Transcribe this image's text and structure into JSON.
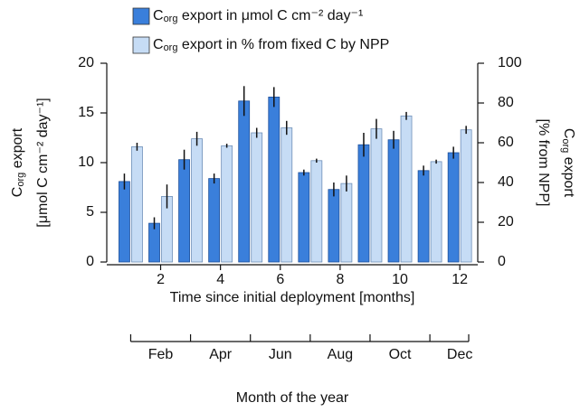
{
  "chart_data": {
    "type": "bar",
    "ylabel": [
      "Corg export",
      "[μmol C cm⁻² day⁻¹]"
    ],
    "y2label": [
      "Corg export",
      "[% from NPP]"
    ],
    "xlabel": "Time since initial deployment [months]",
    "x2label": "Month of the year",
    "x": [
      1,
      2,
      3,
      4,
      5,
      6,
      7,
      8,
      9,
      10,
      11,
      12
    ],
    "xlim": [
      0.2,
      12.6
    ],
    "xticks": [
      2,
      4,
      6,
      8,
      10,
      12
    ],
    "x2ticks": [
      {
        "value": 2,
        "label": "Feb"
      },
      {
        "value": 4,
        "label": "Apr"
      },
      {
        "value": 6,
        "label": "Jun"
      },
      {
        "value": 8,
        "label": "Aug"
      },
      {
        "value": 10,
        "label": "Oct"
      },
      {
        "value": 12,
        "label": "Dec"
      }
    ],
    "ylim": [
      0,
      20
    ],
    "yticks": [
      0,
      5,
      10,
      15,
      20
    ],
    "y2lim": [
      0,
      100
    ],
    "y2ticks": [
      0,
      20,
      40,
      60,
      80,
      100
    ],
    "series": [
      {
        "name": "Corg export in μmol C cm⁻² day⁻¹",
        "color": "#3a7fdb",
        "values": [
          8.1,
          3.9,
          10.3,
          8.4,
          16.2,
          16.6,
          9.0,
          7.3,
          11.8,
          12.3,
          9.2,
          11.0
        ],
        "errors": [
          0.8,
          0.6,
          1.0,
          0.5,
          1.5,
          1.0,
          0.3,
          0.7,
          1.2,
          0.9,
          0.5,
          0.6
        ]
      },
      {
        "name": "Corg export in % from fixed C by NPP",
        "color": "#c6dcf5",
        "axis": "y2",
        "values": [
          58,
          33,
          62,
          58.5,
          65,
          67.5,
          51,
          39.5,
          67,
          73.5,
          50.5,
          66.5
        ],
        "errors": [
          2,
          6,
          3.5,
          1,
          2.5,
          3.5,
          1,
          4,
          5,
          2,
          1,
          2
        ]
      }
    ]
  }
}
